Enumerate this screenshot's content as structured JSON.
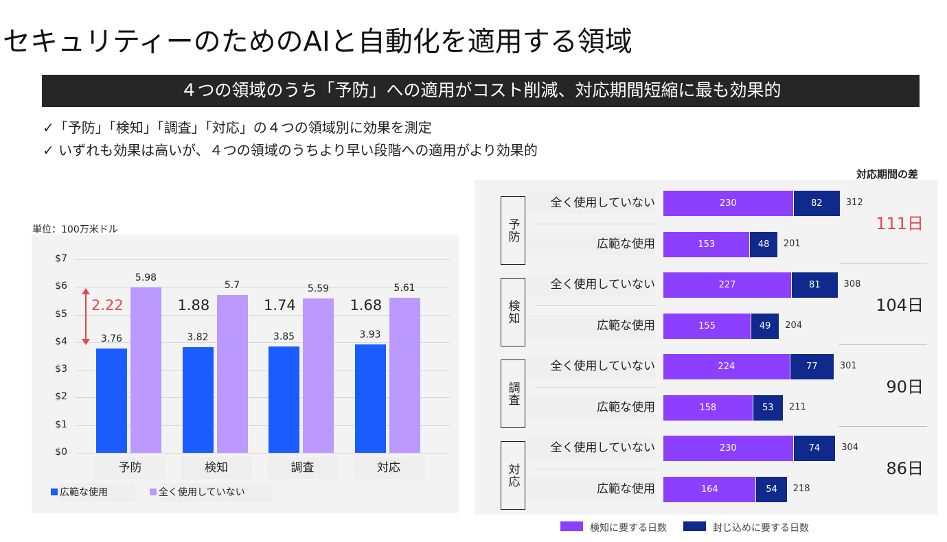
{
  "title": "セキュリティーのためのAIと自動化を適用する領域",
  "banner": "４つの領域のうち「予防」への適用がコスト削減、対応期間短縮に最も効果的",
  "bullets": [
    "✓「予防」「検知」「調査」「対応」の４つの領域別に効果を測定",
    "✓ いずれも効果は高いが、４つの領域のうちより早い段階への適用がより効果的"
  ],
  "chart_data": [
    {
      "type": "bar",
      "title": "",
      "unit_label": "単位：100万米ドル",
      "categories": [
        "予防",
        "検知",
        "調査",
        "対応"
      ],
      "series": [
        {
          "name": "広範な使用",
          "color": "#1a5cff",
          "values": [
            3.76,
            3.82,
            3.85,
            3.93
          ]
        },
        {
          "name": "全く使用していない",
          "color": "#bb99ff",
          "values": [
            5.98,
            5.7,
            5.59,
            5.61
          ]
        }
      ],
      "differences": [
        "2.22",
        "1.88",
        "1.74",
        "1.68"
      ],
      "highlight_color": "#e5484d",
      "yticks": [
        "$0",
        "$1",
        "$2",
        "$3",
        "$4",
        "$5",
        "$6",
        "$7"
      ],
      "ylim": [
        0,
        7
      ],
      "grid": true,
      "legend": "bottom-left"
    },
    {
      "type": "bar",
      "orientation": "horizontal",
      "stacked": true,
      "header": "対応期間の差",
      "groups": [
        {
          "name": "予防",
          "diff": "111日",
          "rows": [
            {
              "label": "全く使用していない",
              "detect": 230,
              "contain": 82,
              "total": 312
            },
            {
              "label": "広範な使用",
              "detect": 153,
              "contain": 48,
              "total": 201
            }
          ]
        },
        {
          "name": "検知",
          "diff": "104日",
          "rows": [
            {
              "label": "全く使用していない",
              "detect": 227,
              "contain": 81,
              "total": 308
            },
            {
              "label": "広範な使用",
              "detect": 155,
              "contain": 49,
              "total": 204
            }
          ]
        },
        {
          "name": "調査",
          "diff": "90日",
          "rows": [
            {
              "label": "全く使用していない",
              "detect": 224,
              "contain": 77,
              "total": 301
            },
            {
              "label": "広範な使用",
              "detect": 158,
              "contain": 53,
              "total": 211
            }
          ]
        },
        {
          "name": "対応",
          "diff": "86日",
          "rows": [
            {
              "label": "全く使用していない",
              "detect": 230,
              "contain": 74,
              "total": 304
            },
            {
              "label": "広範な使用",
              "detect": 164,
              "contain": 54,
              "total": 218
            }
          ]
        }
      ],
      "legend": [
        {
          "name": "検知に要する日数",
          "color": "#8c3fff"
        },
        {
          "name": "封じ込めに要する日数",
          "color": "#0f2a8c"
        }
      ],
      "legend_placement": "bottom"
    }
  ]
}
